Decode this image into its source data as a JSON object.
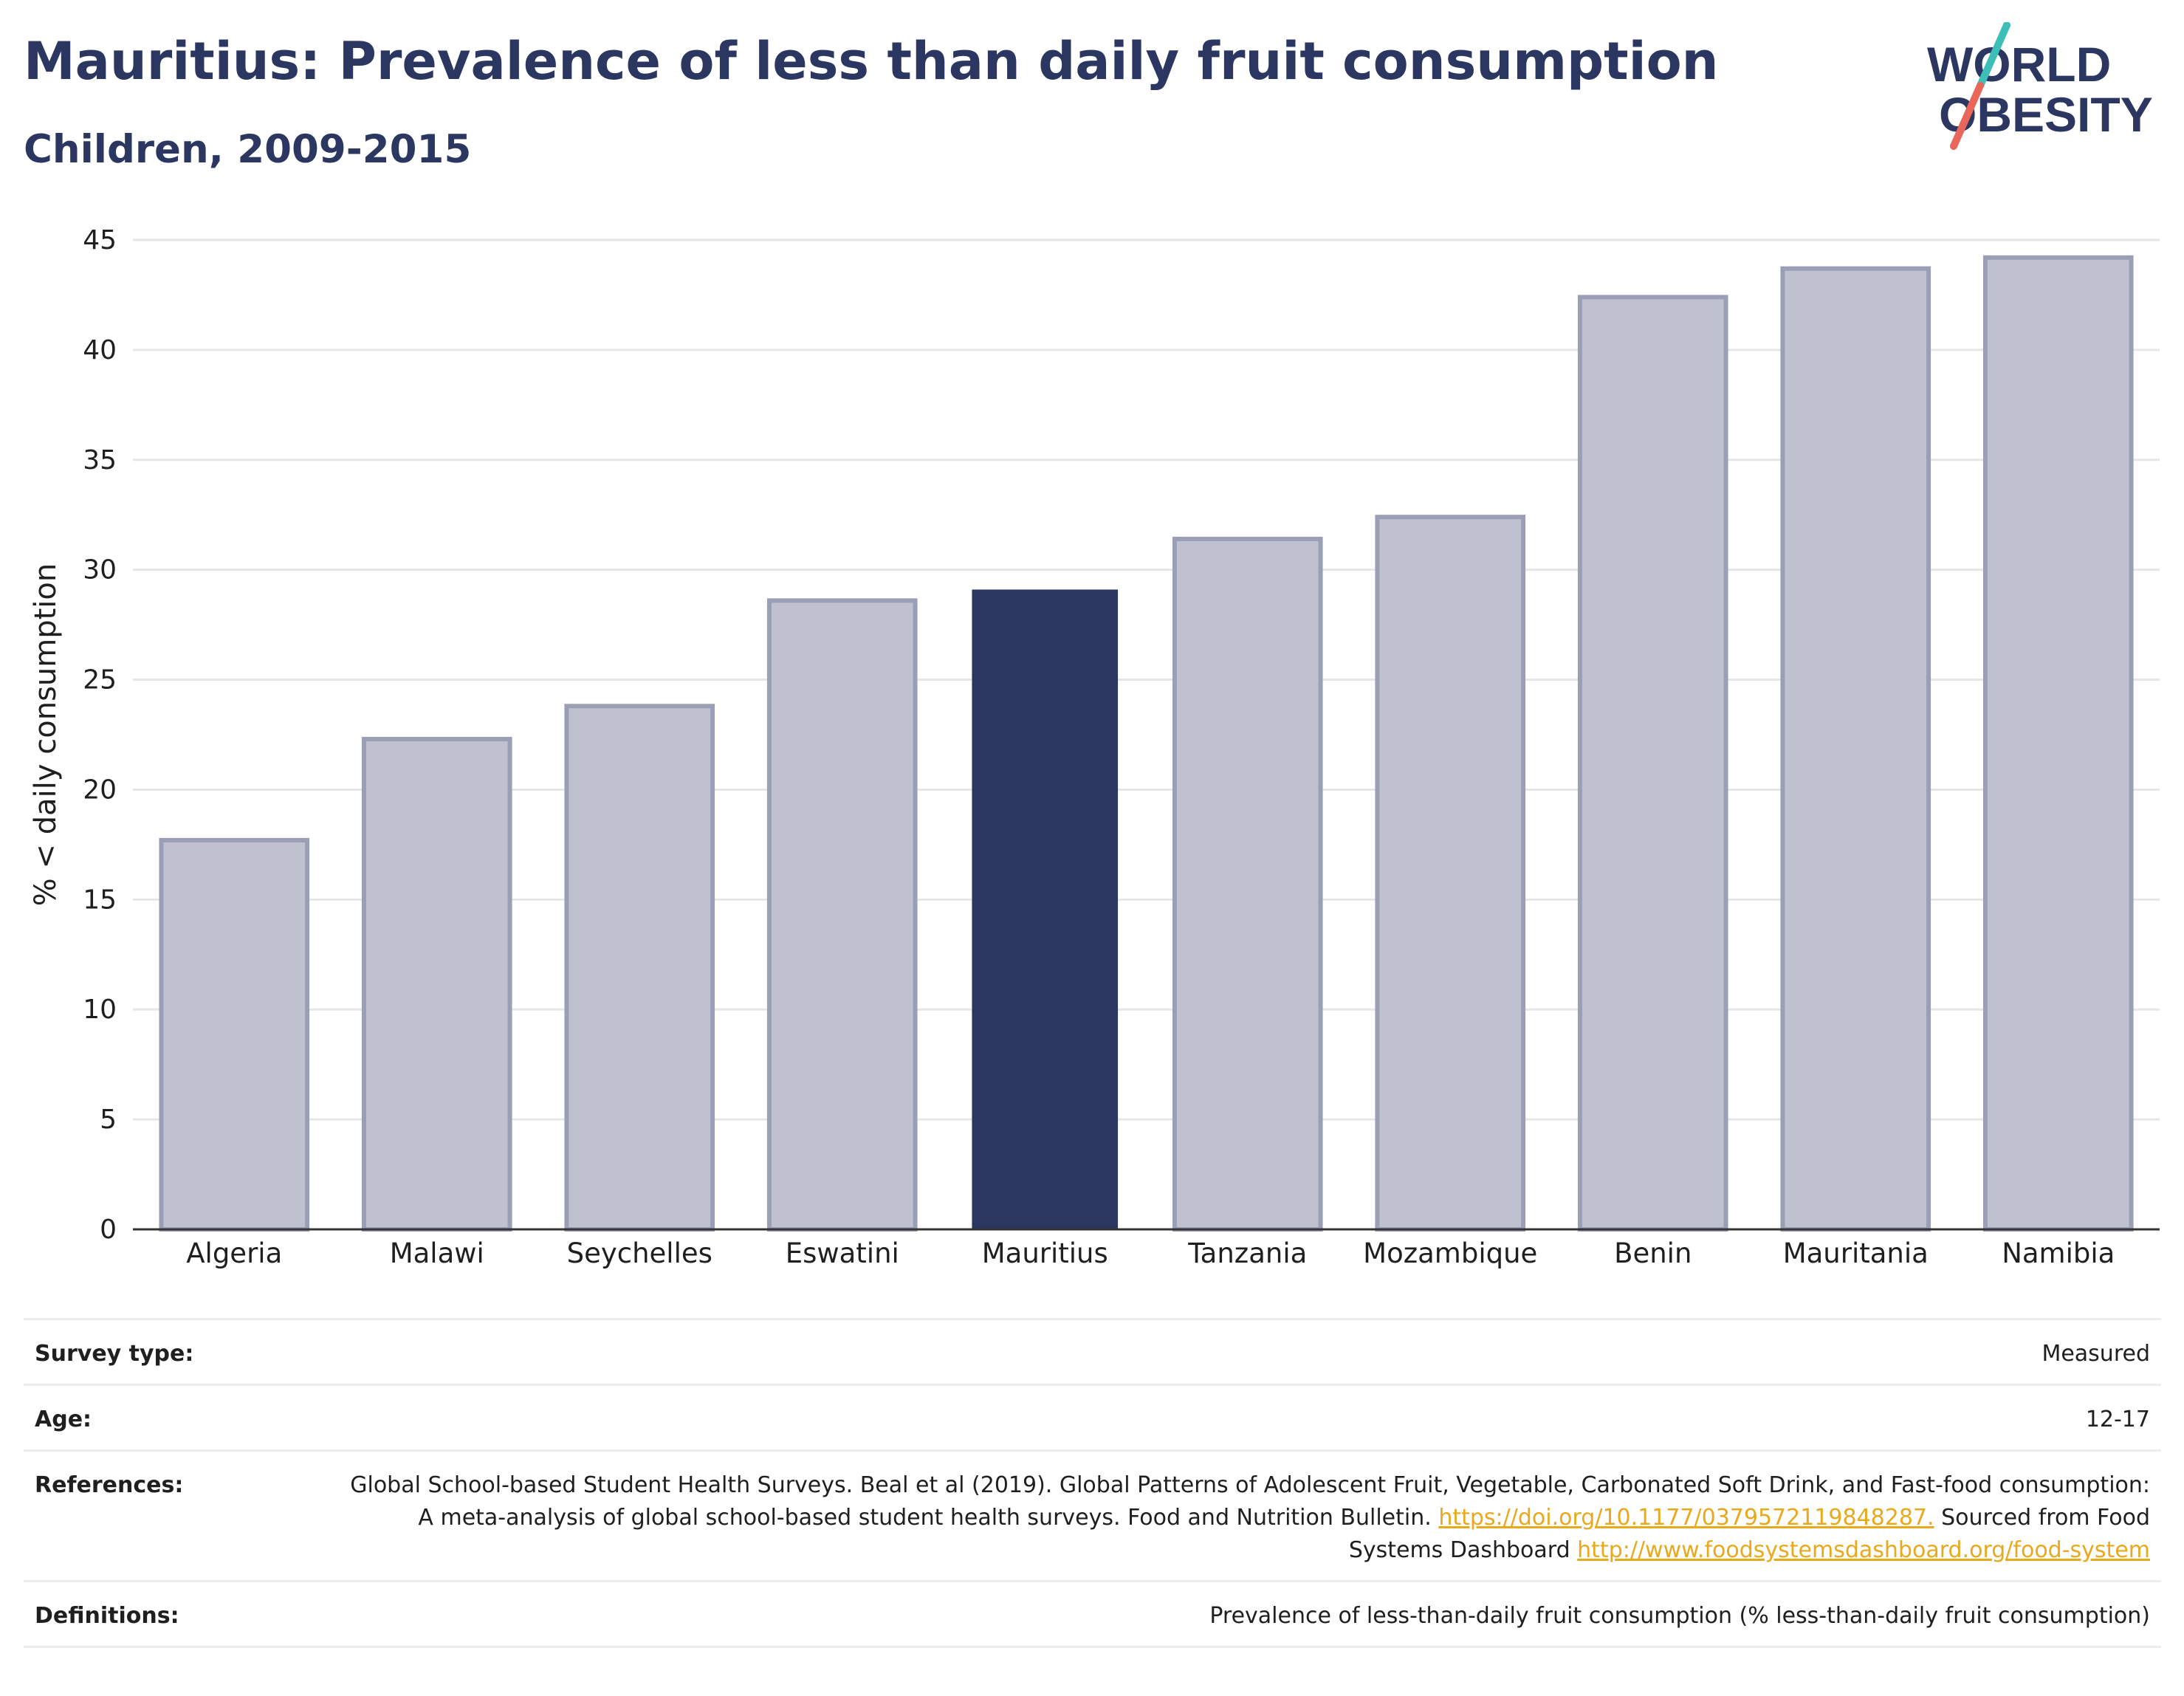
{
  "title": "Mauritius: Prevalence of less than daily fruit consumption",
  "subtitle": "Children, 2009-2015",
  "logo": {
    "line1": "WORLD",
    "line2": "OBESITY",
    "colors": {
      "text": "#2b3661",
      "slash_top": "#3dbfb8",
      "slash_bottom": "#e8665a"
    }
  },
  "chart_data": {
    "type": "bar",
    "categories": [
      "Algeria",
      "Malawi",
      "Seychelles",
      "Eswatini",
      "Mauritius",
      "Tanzania",
      "Mozambique",
      "Benin",
      "Mauritania",
      "Namibia"
    ],
    "values": [
      17.7,
      22.3,
      23.8,
      28.6,
      29.1,
      31.4,
      32.4,
      42.4,
      43.7,
      44.2
    ],
    "highlight": "Mauritius",
    "ylabel": "% < daily consumption",
    "xlabel": "",
    "ylim": [
      0,
      45
    ],
    "yticks": [
      0,
      5,
      10,
      15,
      20,
      25,
      30,
      35,
      40,
      45
    ],
    "grid": true,
    "colors": {
      "bar": "#bfc2ce",
      "bar_edge": "#9a9fb6",
      "highlight": "#2b3661",
      "grid": "#e6e6e6",
      "axis": "#333333"
    }
  },
  "info": {
    "survey_type": {
      "label": "Survey type:",
      "value": "Measured"
    },
    "age": {
      "label": "Age:",
      "value": "12-17"
    },
    "references": {
      "label": "References:",
      "text1": "Global School-based Student Health Surveys. Beal et al (2019). Global Patterns of Adolescent Fruit, Vegetable, Carbonated Soft Drink, and Fast-food consumption: A meta-analysis of global school-based student health surveys. Food and Nutrition Bulletin.",
      "link1": "https://doi.org/10.1177/0379572119848287.",
      "text2": "Sourced from Food Systems Dashboard",
      "link2": "http://www.foodsystemsdashboard.org/food-system"
    },
    "definitions": {
      "label": "Definitions:",
      "value": "Prevalence of less-than-daily fruit consumption (% less-than-daily fruit consumption)"
    }
  }
}
